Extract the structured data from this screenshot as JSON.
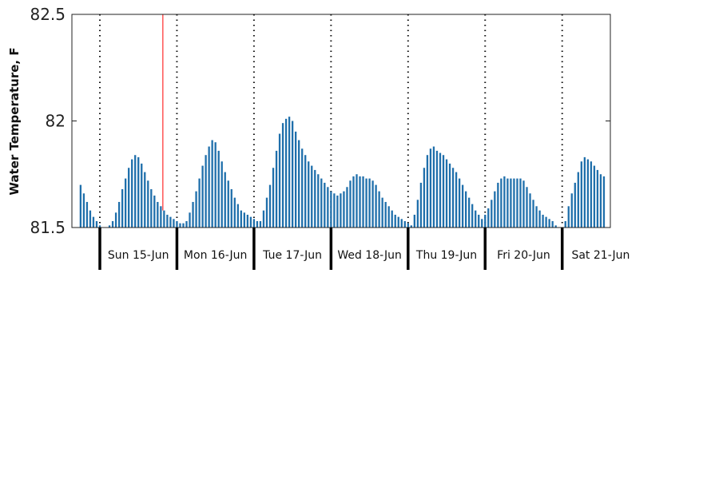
{
  "chart_data": {
    "type": "bar",
    "title": "",
    "xlabel": "",
    "ylabel": "Water Temperature, F",
    "ylim": [
      81.5,
      82.5
    ],
    "yticks": [
      "81.5",
      "82",
      "82.5"
    ],
    "series_color": "#1f6fab",
    "marker_color": "#ff0000",
    "marker_index": 26,
    "grid": "dotted vertical lines at day boundaries",
    "start_time": "Sat 14-Jun 18:00",
    "interval_hours": 1,
    "days": [
      {
        "label": "Sun 15-Jun"
      },
      {
        "label": "Mon 16-Jun"
      },
      {
        "label": "Tue 17-Jun"
      },
      {
        "label": "Wed 18-Jun"
      },
      {
        "label": "Thu 19-Jun"
      },
      {
        "label": "Fri 20-Jun"
      },
      {
        "label": "Sat 21-Jun"
      }
    ],
    "values": [
      81.7,
      81.66,
      81.62,
      81.58,
      81.55,
      81.53,
      81.51,
      81.5,
      81.5,
      81.51,
      81.53,
      81.57,
      81.62,
      81.68,
      81.73,
      81.78,
      81.82,
      81.84,
      81.83,
      81.8,
      81.76,
      81.72,
      81.68,
      81.65,
      81.62,
      81.6,
      81.58,
      81.56,
      81.55,
      81.54,
      81.53,
      81.52,
      81.52,
      81.53,
      81.57,
      81.62,
      81.67,
      81.73,
      81.79,
      81.84,
      81.88,
      81.91,
      81.9,
      81.86,
      81.81,
      81.76,
      81.72,
      81.68,
      81.64,
      81.61,
      81.58,
      81.57,
      81.56,
      81.55,
      81.54,
      81.53,
      81.53,
      81.58,
      81.64,
      81.7,
      81.78,
      81.86,
      81.94,
      81.99,
      82.01,
      82.02,
      82.0,
      81.95,
      81.91,
      81.87,
      81.84,
      81.81,
      81.79,
      81.77,
      81.75,
      81.73,
      81.71,
      81.69,
      81.67,
      81.66,
      81.65,
      81.66,
      81.67,
      81.69,
      81.72,
      81.74,
      81.75,
      81.74,
      81.74,
      81.73,
      81.73,
      81.72,
      81.7,
      81.67,
      81.64,
      81.62,
      81.6,
      81.58,
      81.56,
      81.55,
      81.54,
      81.53,
      81.52,
      81.51,
      81.56,
      81.63,
      81.71,
      81.78,
      81.84,
      81.87,
      81.88,
      81.86,
      81.85,
      81.84,
      81.82,
      81.8,
      81.78,
      81.76,
      81.73,
      81.7,
      81.67,
      81.64,
      81.61,
      81.58,
      81.56,
      81.54,
      81.56,
      81.59,
      81.63,
      81.67,
      81.71,
      81.73,
      81.74,
      81.73,
      81.73,
      81.73,
      81.73,
      81.73,
      81.72,
      81.69,
      81.66,
      81.63,
      81.6,
      81.58,
      81.56,
      81.55,
      81.54,
      81.53,
      81.51,
      81.5,
      81.5,
      81.53,
      81.6,
      81.66,
      81.71,
      81.76,
      81.81,
      81.83,
      81.82,
      81.81,
      81.79,
      81.77,
      81.75,
      81.74
    ]
  }
}
